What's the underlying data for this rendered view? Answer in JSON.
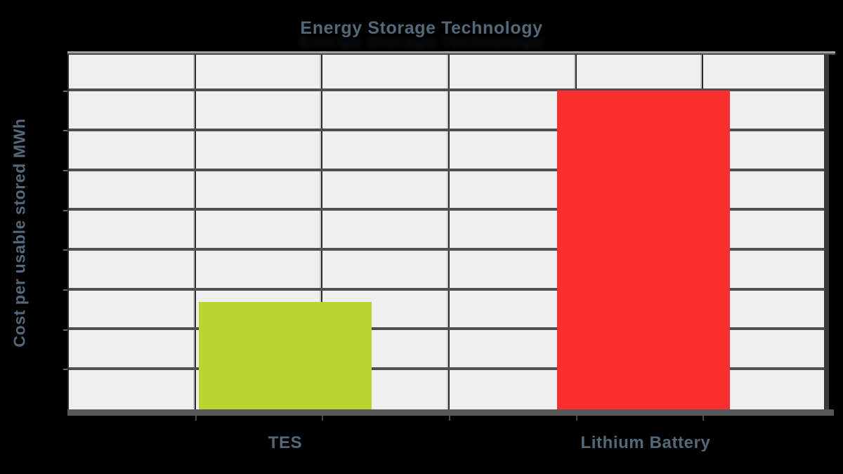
{
  "page": {
    "background": "#000000",
    "text_color": "#54687a"
  },
  "chart_data": {
    "type": "bar",
    "title": "Energy Storage Technology",
    "xlabel": "",
    "ylabel": "Cost per usable stored MWh",
    "categories": [
      "TES",
      "Lithium Battery"
    ],
    "values": [
      30,
      89
    ],
    "ylim": [
      0,
      100
    ],
    "value_note": "y-axis shows no numeric tick labels; values estimated from gridlines as percent of full axis height",
    "grid": "on",
    "grid_rows": 9,
    "grid_cols": 6,
    "legend": "none",
    "bar_colors": [
      "#bad432",
      "#fc2f2f"
    ],
    "plot_background": "#efefef",
    "grid_line_color": "#a8a8a8",
    "axis_color": "#565656"
  }
}
